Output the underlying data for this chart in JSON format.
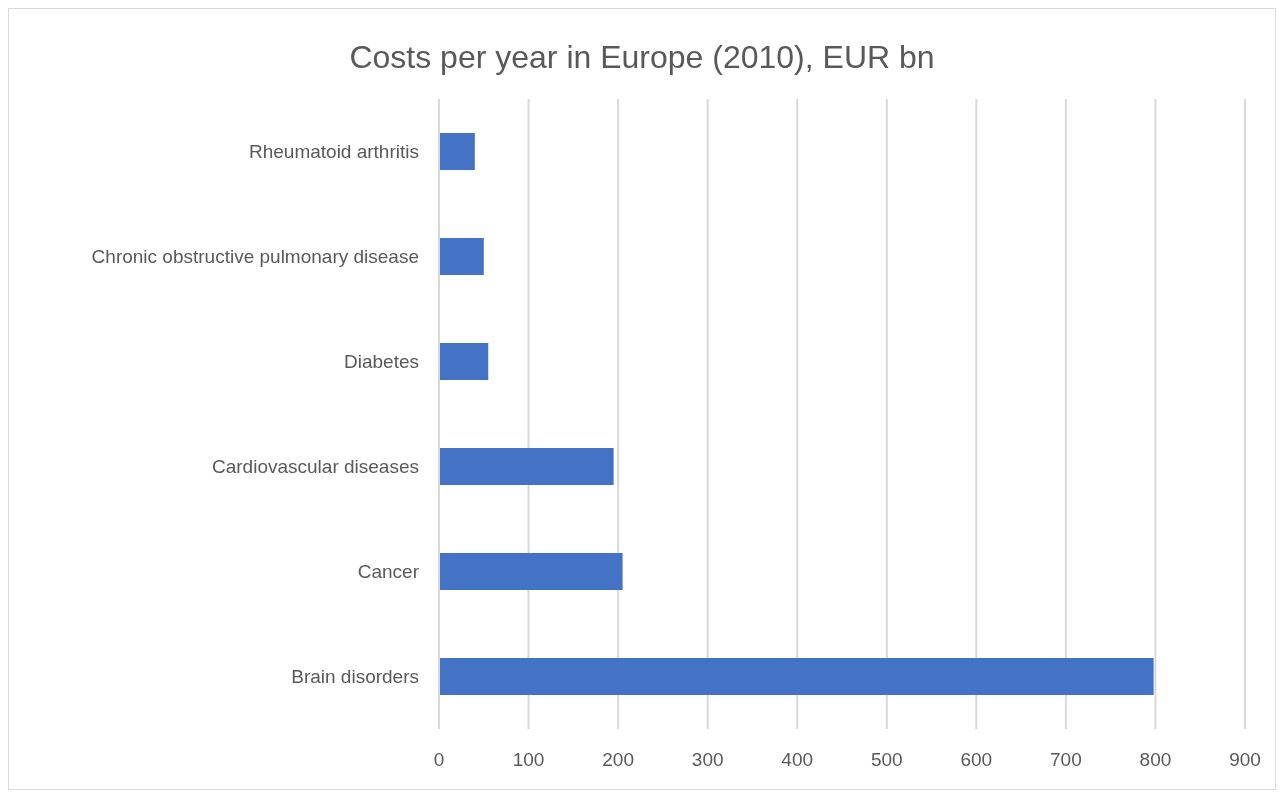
{
  "chart_data": {
    "type": "bar",
    "orientation": "horizontal",
    "title": "Costs per year in Europe (2010), EUR bn",
    "categories": [
      "Rheumatoid arthritis",
      "Chronic obstructive pulmonary disease",
      "Diabetes",
      "Cardiovascular diseases",
      "Cancer",
      "Brain disorders"
    ],
    "values": [
      40,
      50,
      55,
      195,
      205,
      798
    ],
    "color": "#4472c4",
    "xlim": [
      0,
      900
    ],
    "xticks": [
      0,
      100,
      200,
      300,
      400,
      500,
      600,
      700,
      800,
      900
    ],
    "grid": "x"
  }
}
